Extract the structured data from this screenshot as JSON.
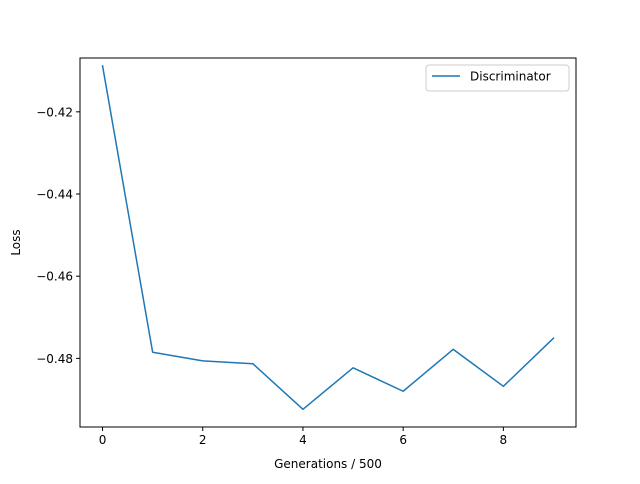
{
  "chart_data": {
    "type": "line",
    "title": "",
    "xlabel": "Generations / 500",
    "ylabel": "Loss",
    "xlim": [
      -0.45,
      9.45
    ],
    "ylim": [
      -0.4967,
      -0.4069
    ],
    "x_ticks": [
      0,
      2,
      4,
      6,
      8
    ],
    "x_tick_labels": [
      "0",
      "2",
      "4",
      "6",
      "8"
    ],
    "y_ticks": [
      -0.42,
      -0.44,
      -0.46,
      -0.48
    ],
    "y_tick_labels": [
      "−0.42",
      "−0.44",
      "−0.46",
      "−0.48"
    ],
    "grid": false,
    "legend_position": "upper right",
    "series": [
      {
        "name": "Discriminator",
        "color": "#1f77b4",
        "x": [
          0,
          1,
          2,
          3,
          4,
          5,
          6,
          7,
          8,
          9
        ],
        "y": [
          -0.4088,
          -0.4785,
          -0.4806,
          -0.4813,
          -0.4924,
          -0.4823,
          -0.488,
          -0.4778,
          -0.4868,
          -0.4751
        ]
      }
    ]
  }
}
